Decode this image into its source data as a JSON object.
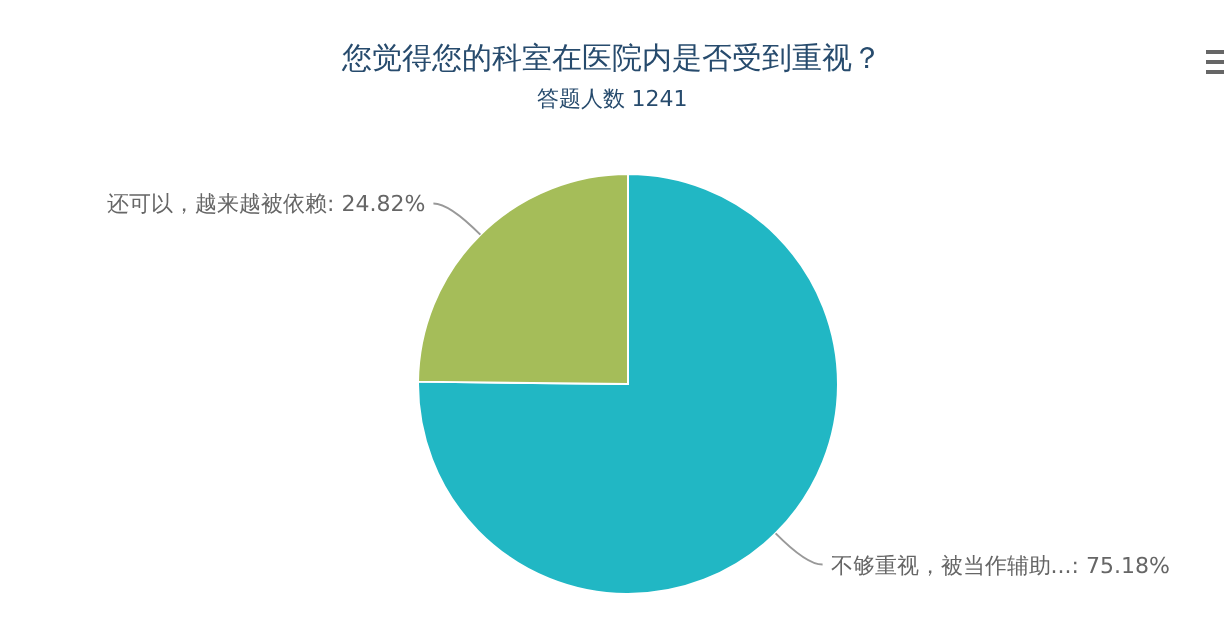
{
  "chart_data": {
    "type": "pie",
    "title": "您觉得您的科室在医院内是否受到重视？",
    "subtitle": "答题人数 1241",
    "categories": [
      "不够重视，被当作辅助...",
      "还可以，越来越被依赖"
    ],
    "values": [
      75.18,
      24.82
    ],
    "colors": [
      "#21b7c4",
      "#a5bd59"
    ],
    "value_labels": [
      "75.18%",
      "24.82%"
    ],
    "legend": false
  }
}
